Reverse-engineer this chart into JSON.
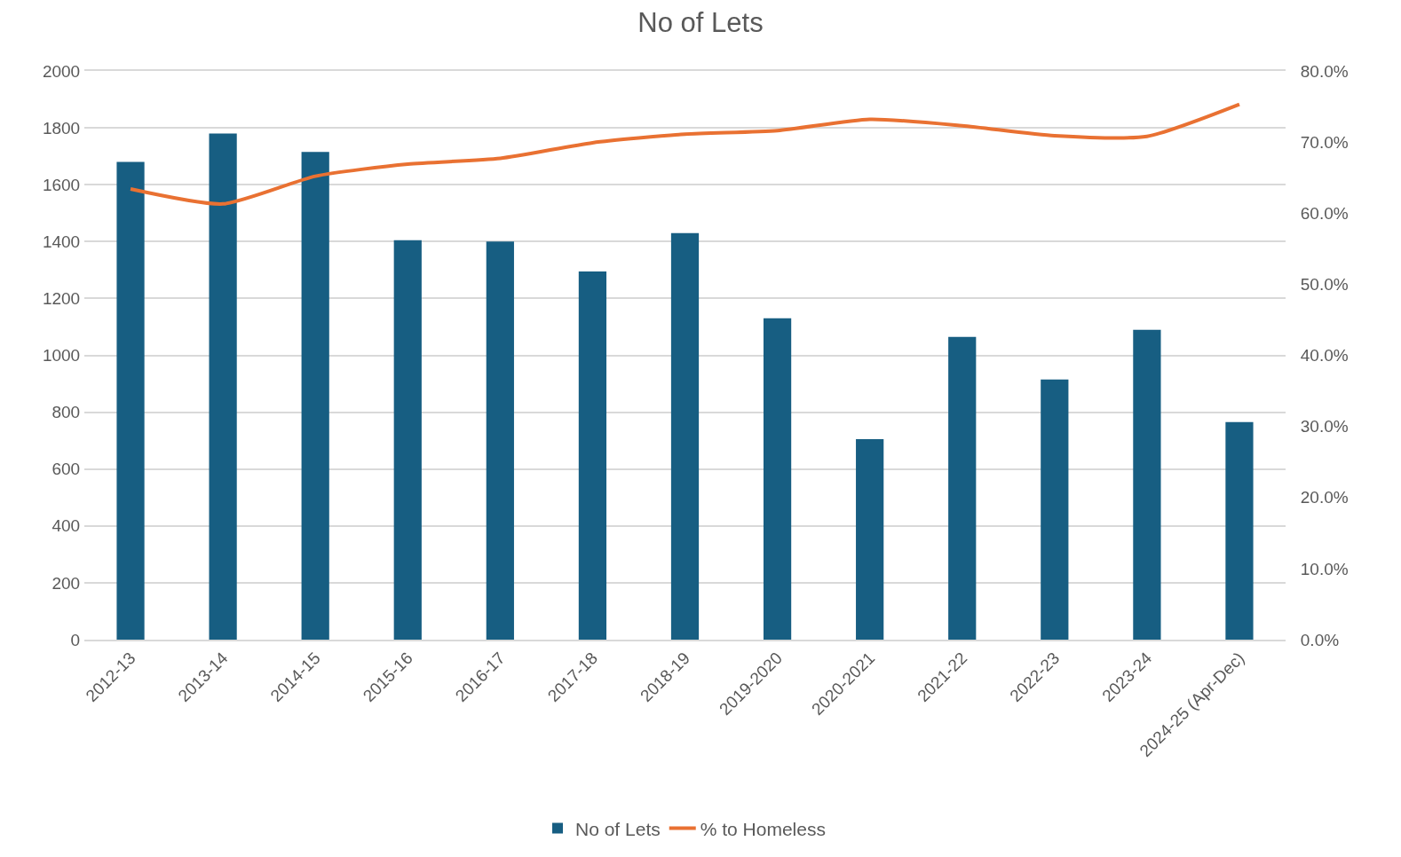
{
  "chart_data": {
    "type": "bar",
    "title": "No of Lets",
    "categories": [
      "2012-13",
      "2013-14",
      "2014-15",
      "2015-16",
      "2016-17",
      "2017-18",
      "2018-19",
      "2019-2020",
      "2020-2021",
      "2021-22",
      "2022-23",
      "2023-24",
      "2024-25 (Apr-Dec)"
    ],
    "series": [
      {
        "name": "No of Lets",
        "color": "#175e82",
        "values": [
          1680,
          1780,
          1715,
          1405,
          1400,
          1295,
          1430,
          1130,
          705,
          1065,
          915,
          1090,
          765
        ]
      },
      {
        "name": "% to Homeless",
        "type": "line",
        "axis": "y2",
        "color": "#e97132",
        "values": [
          63.4,
          61.3,
          65.2,
          66.9,
          67.7,
          69.9,
          71.1,
          71.6,
          73.2,
          72.3,
          70.9,
          70.8,
          75.3
        ]
      }
    ],
    "ylim": [
      0,
      2000
    ],
    "yticks": [
      0,
      200,
      400,
      600,
      800,
      1000,
      1200,
      1400,
      1600,
      1800,
      2000
    ],
    "y2lim": [
      0,
      80
    ],
    "y2ticks": [
      {
        "value": 0,
        "label": "0.0%"
      },
      {
        "value": 10,
        "label": "10.0%"
      },
      {
        "value": 20,
        "label": "20.0%"
      },
      {
        "value": 30,
        "label": "30.0%"
      },
      {
        "value": 40,
        "label": "40.0%"
      },
      {
        "value": 50,
        "label": "50.0%"
      },
      {
        "value": 60,
        "label": "60.0%"
      },
      {
        "value": 70,
        "label": "70.0%"
      },
      {
        "value": 80,
        "label": "80.0%"
      }
    ],
    "grid": "y",
    "legend": "bottom",
    "marker": "none",
    "line_style": "solid"
  }
}
